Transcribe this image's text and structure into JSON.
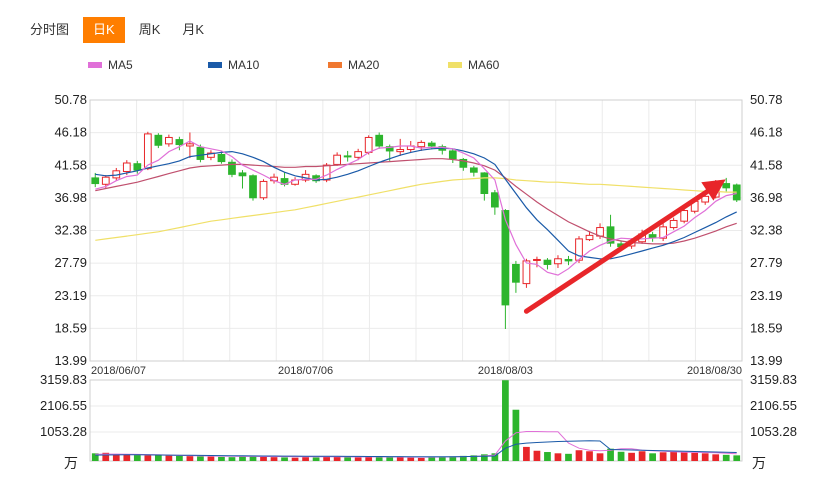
{
  "tabs": [
    {
      "label": "分时图",
      "active": false
    },
    {
      "label": "日K",
      "active": true
    },
    {
      "label": "周K",
      "active": false
    },
    {
      "label": "月K",
      "active": false
    }
  ],
  "legend": [
    {
      "label": "MA5",
      "color": "#e070d8"
    },
    {
      "label": "MA10",
      "color": "#1a5aa8"
    },
    {
      "label": "MA20",
      "color": "#f07830"
    },
    {
      "label": "MA60",
      "color": "#f0e068"
    }
  ],
  "colors": {
    "up": "#e8262a",
    "down": "#2db52d",
    "arrow": "#e8262a",
    "grid": "#ebebeb"
  },
  "chart_data": {
    "type": "candlestick",
    "ylim": [
      13.99,
      50.78
    ],
    "y_ticks": [
      "50.78",
      "46.18",
      "41.58",
      "36.98",
      "32.38",
      "27.79",
      "23.19",
      "18.59",
      "13.99"
    ],
    "x_ticks": [
      "2018/06/07",
      "2018/07/06",
      "2018/08/03",
      "2018/08/30"
    ],
    "candles": [
      [
        39.8,
        39.0,
        40.5,
        38.5
      ],
      [
        38.9,
        39.9,
        40.2,
        38.4
      ],
      [
        39.8,
        40.8,
        41.2,
        39.4
      ],
      [
        40.7,
        41.9,
        42.3,
        40.2
      ],
      [
        41.8,
        40.9,
        42.2,
        40.4
      ],
      [
        41.1,
        46.0,
        46.3,
        40.9
      ],
      [
        45.8,
        44.4,
        46.1,
        44.0
      ],
      [
        44.6,
        45.5,
        45.9,
        44.2
      ],
      [
        45.2,
        44.5,
        45.6,
        43.7
      ],
      [
        44.3,
        44.6,
        46.2,
        42.6
      ],
      [
        44.1,
        42.4,
        44.5,
        42.0
      ],
      [
        42.7,
        43.3,
        43.7,
        42.3
      ],
      [
        43.1,
        42.1,
        43.5,
        41.8
      ],
      [
        42.0,
        40.3,
        42.4,
        39.9
      ],
      [
        40.5,
        40.1,
        40.9,
        38.3
      ],
      [
        40.1,
        37.0,
        40.3,
        36.6
      ],
      [
        37.0,
        39.3,
        39.6,
        36.7
      ],
      [
        39.4,
        39.9,
        40.4,
        39.0
      ],
      [
        39.7,
        38.9,
        40.6,
        38.6
      ],
      [
        38.9,
        39.5,
        39.9,
        38.7
      ],
      [
        39.5,
        40.3,
        40.9,
        39.2
      ],
      [
        40.1,
        39.4,
        40.3,
        39.1
      ],
      [
        39.5,
        41.6,
        41.9,
        39.2
      ],
      [
        41.7,
        43.0,
        43.4,
        41.5
      ],
      [
        42.9,
        42.8,
        43.6,
        42.1
      ],
      [
        42.7,
        43.5,
        43.9,
        42.3
      ],
      [
        43.4,
        45.5,
        45.8,
        43.1
      ],
      [
        45.8,
        44.3,
        46.2,
        43.9
      ],
      [
        44.2,
        43.6,
        44.5,
        42.2
      ],
      [
        43.5,
        43.8,
        45.3,
        42.9
      ],
      [
        43.8,
        44.3,
        45.0,
        43.4
      ],
      [
        44.2,
        44.8,
        45.1,
        43.6
      ],
      [
        44.7,
        44.3,
        45.0,
        43.8
      ],
      [
        44.2,
        43.7,
        44.5,
        43.1
      ],
      [
        43.6,
        42.5,
        43.9,
        41.9
      ],
      [
        42.4,
        41.3,
        42.6,
        40.8
      ],
      [
        41.2,
        40.6,
        41.5,
        40.0
      ],
      [
        40.5,
        37.6,
        40.6,
        36.6
      ],
      [
        37.7,
        35.7,
        38.1,
        34.6
      ],
      [
        35.2,
        21.9,
        35.4,
        18.5
      ],
      [
        27.6,
        25.1,
        28.1,
        23.6
      ],
      [
        24.9,
        28.1,
        28.4,
        24.3
      ],
      [
        28.3,
        28.3,
        28.7,
        27.2
      ],
      [
        28.2,
        27.6,
        28.5,
        26.9
      ],
      [
        27.7,
        28.4,
        28.9,
        27.1
      ],
      [
        28.3,
        28.1,
        28.8,
        27.5
      ],
      [
        28.2,
        31.2,
        31.6,
        27.8
      ],
      [
        31.1,
        31.7,
        32.3,
        30.9
      ],
      [
        31.6,
        32.8,
        33.4,
        31.2
      ],
      [
        32.9,
        30.6,
        34.6,
        30.1
      ],
      [
        30.5,
        30.1,
        31.0,
        29.6
      ],
      [
        30.2,
        30.9,
        31.3,
        29.8
      ],
      [
        30.8,
        31.9,
        32.5,
        30.5
      ],
      [
        31.8,
        31.4,
        32.2,
        30.8
      ],
      [
        31.3,
        32.9,
        33.6,
        30.9
      ],
      [
        32.8,
        33.8,
        34.2,
        32.5
      ],
      [
        33.7,
        35.2,
        35.6,
        33.4
      ],
      [
        35.1,
        36.5,
        36.9,
        34.8
      ],
      [
        36.4,
        37.2,
        37.6,
        36.0
      ],
      [
        37.1,
        39.1,
        39.5,
        36.9
      ],
      [
        39.0,
        38.4,
        39.8,
        37.9
      ],
      [
        38.8,
        36.7,
        39.0,
        36.4
      ]
    ],
    "ma5": [
      38.2,
      38.6,
      39.4,
      40.0,
      40.2,
      41.6,
      42.3,
      43.5,
      44.2,
      45.0,
      44.2,
      43.9,
      43.6,
      42.8,
      41.6,
      40.9,
      40.2,
      39.4,
      38.9,
      39.5,
      39.6,
      39.6,
      40.2,
      41.0,
      41.7,
      42.4,
      43.4,
      44.0,
      44.1,
      44.3,
      44.3,
      44.0,
      44.1,
      44.1,
      43.9,
      43.3,
      42.6,
      41.1,
      39.5,
      33.9,
      30.4,
      27.8,
      27.6,
      26.5,
      26.1,
      27.0,
      28.3,
      29.5,
      30.3,
      30.9,
      31.3,
      31.2,
      31.2,
      31.3,
      31.4,
      32.2,
      33.0,
      34.2,
      35.2,
      36.5,
      37.3,
      37.6
    ],
    "ma10": [
      40.3,
      40.1,
      40.2,
      40.5,
      40.8,
      41.2,
      41.5,
      41.8,
      42.2,
      42.8,
      43.0,
      43.2,
      43.4,
      43.5,
      43.2,
      42.7,
      42.1,
      41.3,
      40.6,
      40.1,
      39.8,
      39.5,
      39.6,
      39.9,
      40.3,
      40.8,
      41.4,
      42.0,
      42.5,
      43.0,
      43.4,
      43.7,
      43.9,
      44.0,
      43.9,
      43.6,
      43.2,
      42.6,
      41.7,
      39.6,
      37.6,
      35.6,
      33.9,
      32.5,
      31.0,
      29.5,
      28.8,
      28.6,
      28.4,
      28.4,
      28.7,
      29.1,
      29.5,
      29.9,
      30.3,
      30.8,
      31.4,
      32.1,
      32.8,
      33.5,
      34.3,
      35.0
    ],
    "ma20": [
      38.0,
      38.3,
      38.6,
      38.9,
      39.2,
      39.6,
      40.0,
      40.4,
      40.8,
      41.2,
      41.4,
      41.5,
      41.6,
      41.7,
      41.7,
      41.6,
      41.5,
      41.4,
      41.3,
      41.3,
      41.4,
      41.4,
      41.5,
      41.6,
      41.7,
      41.8,
      41.9,
      42.0,
      42.1,
      42.2,
      42.3,
      42.4,
      42.5,
      42.5,
      42.4,
      42.2,
      41.9,
      41.5,
      40.9,
      39.8,
      38.6,
      37.5,
      36.4,
      35.4,
      34.5,
      33.6,
      32.9,
      32.2,
      31.6,
      31.2,
      30.9,
      30.7,
      30.6,
      30.5,
      30.5,
      30.6,
      30.9,
      31.3,
      31.8,
      32.3,
      32.9,
      33.4
    ],
    "ma60": [
      31.0,
      31.2,
      31.4,
      31.6,
      31.8,
      32.0,
      32.2,
      32.5,
      32.8,
      33.1,
      33.4,
      33.7,
      33.9,
      34.1,
      34.3,
      34.5,
      34.7,
      34.9,
      35.1,
      35.3,
      35.6,
      35.9,
      36.2,
      36.5,
      36.8,
      37.1,
      37.4,
      37.7,
      38.0,
      38.3,
      38.6,
      38.9,
      39.1,
      39.3,
      39.5,
      39.6,
      39.7,
      39.8,
      39.8,
      39.7,
      39.5,
      39.4,
      39.3,
      39.2,
      39.2,
      39.1,
      39.0,
      38.9,
      38.9,
      38.8,
      38.7,
      38.6,
      38.5,
      38.4,
      38.3,
      38.2,
      38.1,
      38.0,
      37.9,
      37.9,
      37.8,
      37.8
    ],
    "volume_ylim": [
      0,
      3159.83
    ],
    "volume_ticks": [
      "3159.83",
      "2106.55",
      "1053.28"
    ],
    "volume_unit": "万",
    "volume": [
      300,
      320,
      260,
      240,
      230,
      220,
      240,
      210,
      200,
      190,
      180,
      170,
      160,
      150,
      200,
      180,
      160,
      150,
      140,
      130,
      150,
      140,
      160,
      170,
      150,
      140,
      180,
      160,
      150,
      140,
      130,
      120,
      140,
      160,
      180,
      200,
      220,
      260,
      300,
      3150,
      2000,
      550,
      400,
      350,
      300,
      280,
      420,
      380,
      300,
      480,
      360,
      320,
      380,
      300,
      340,
      360,
      340,
      320,
      300,
      260,
      240,
      220
    ],
    "volume_ma5": [
      260,
      270,
      270,
      265,
      258,
      250,
      240,
      230,
      220,
      210,
      200,
      195,
      190,
      185,
      180,
      178,
      176,
      174,
      172,
      170,
      168,
      166,
      164,
      162,
      160,
      160,
      158,
      158,
      156,
      156,
      154,
      154,
      154,
      156,
      160,
      170,
      180,
      200,
      230,
      780,
      1100,
      1150,
      1150,
      1140,
      1140,
      700,
      500,
      420,
      400,
      420,
      480,
      480,
      420,
      400,
      380,
      360,
      340,
      340,
      330,
      320,
      300,
      280
    ],
    "volume_ma10": [
      230,
      235,
      238,
      240,
      240,
      238,
      234,
      230,
      226,
      222,
      218,
      214,
      210,
      206,
      202,
      198,
      196,
      194,
      192,
      190,
      188,
      186,
      184,
      182,
      180,
      178,
      176,
      174,
      172,
      170,
      168,
      166,
      165,
      166,
      168,
      172,
      178,
      186,
      196,
      500,
      650,
      700,
      720,
      740,
      760,
      770,
      780,
      790,
      780,
      450,
      440,
      430,
      420,
      410,
      400,
      390,
      380,
      370,
      360,
      350,
      340,
      330
    ]
  }
}
